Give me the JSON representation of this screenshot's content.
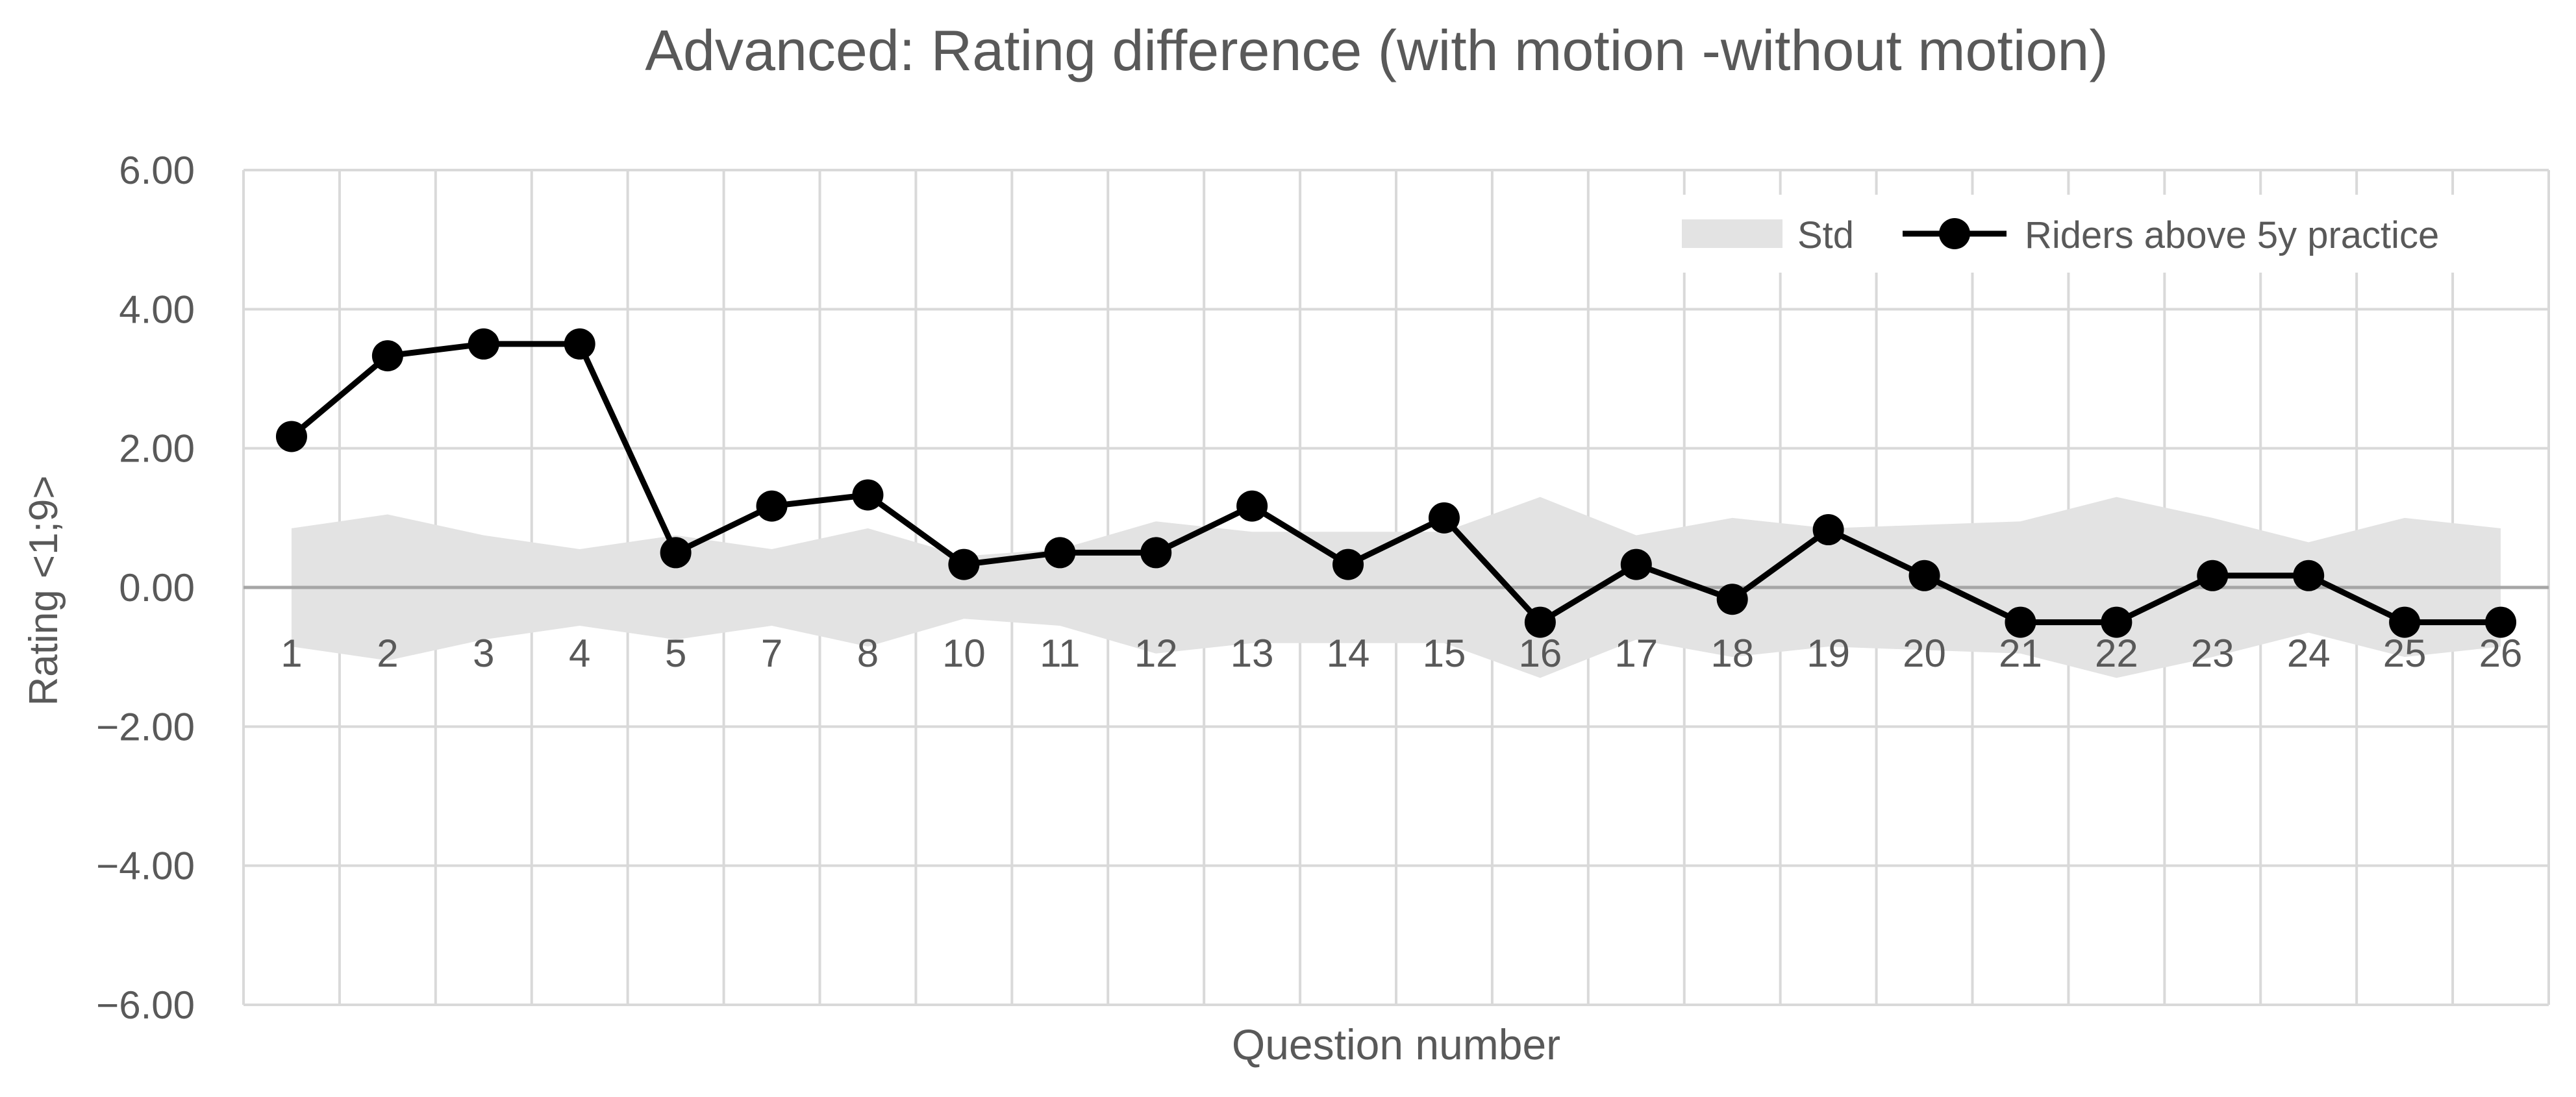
{
  "chart_data": {
    "type": "line",
    "title": "Advanced: Rating difference (with motion -without motion)",
    "xlabel": "Question number",
    "ylabel": "Rating <1;9>",
    "categories": [
      "1",
      "2",
      "3",
      "4",
      "5",
      "7",
      "8",
      "10",
      "11",
      "12",
      "13",
      "14",
      "15",
      "16",
      "17",
      "18",
      "19",
      "20",
      "21",
      "22",
      "23",
      "24",
      "25",
      "26"
    ],
    "y_ticks": [
      "6.00",
      "4.00",
      "2.00",
      "0.00",
      "−2.00",
      "−4.00",
      "−6.00"
    ],
    "ylim": [
      -6,
      6
    ],
    "grid": true,
    "legend_position": "top-right",
    "series": [
      {
        "name": "Std",
        "kind": "band",
        "color": "#e3e3e3",
        "values": [
          0.85,
          1.05,
          0.75,
          0.55,
          0.75,
          0.55,
          0.85,
          0.45,
          0.55,
          0.95,
          0.8,
          0.8,
          0.8,
          1.3,
          0.75,
          1.0,
          0.85,
          0.9,
          0.95,
          1.3,
          1.0,
          0.65,
          1.0,
          0.85
        ]
      },
      {
        "name": "Riders above 5y practice",
        "kind": "line",
        "color": "#000000",
        "values": [
          2.17,
          3.33,
          3.5,
          3.5,
          0.5,
          1.17,
          1.33,
          0.33,
          0.5,
          0.5,
          1.17,
          0.33,
          1.0,
          -0.5,
          0.33,
          -0.17,
          0.83,
          0.17,
          -0.5,
          -0.5,
          0.17,
          0.17,
          -0.5,
          -0.5
        ]
      }
    ]
  }
}
